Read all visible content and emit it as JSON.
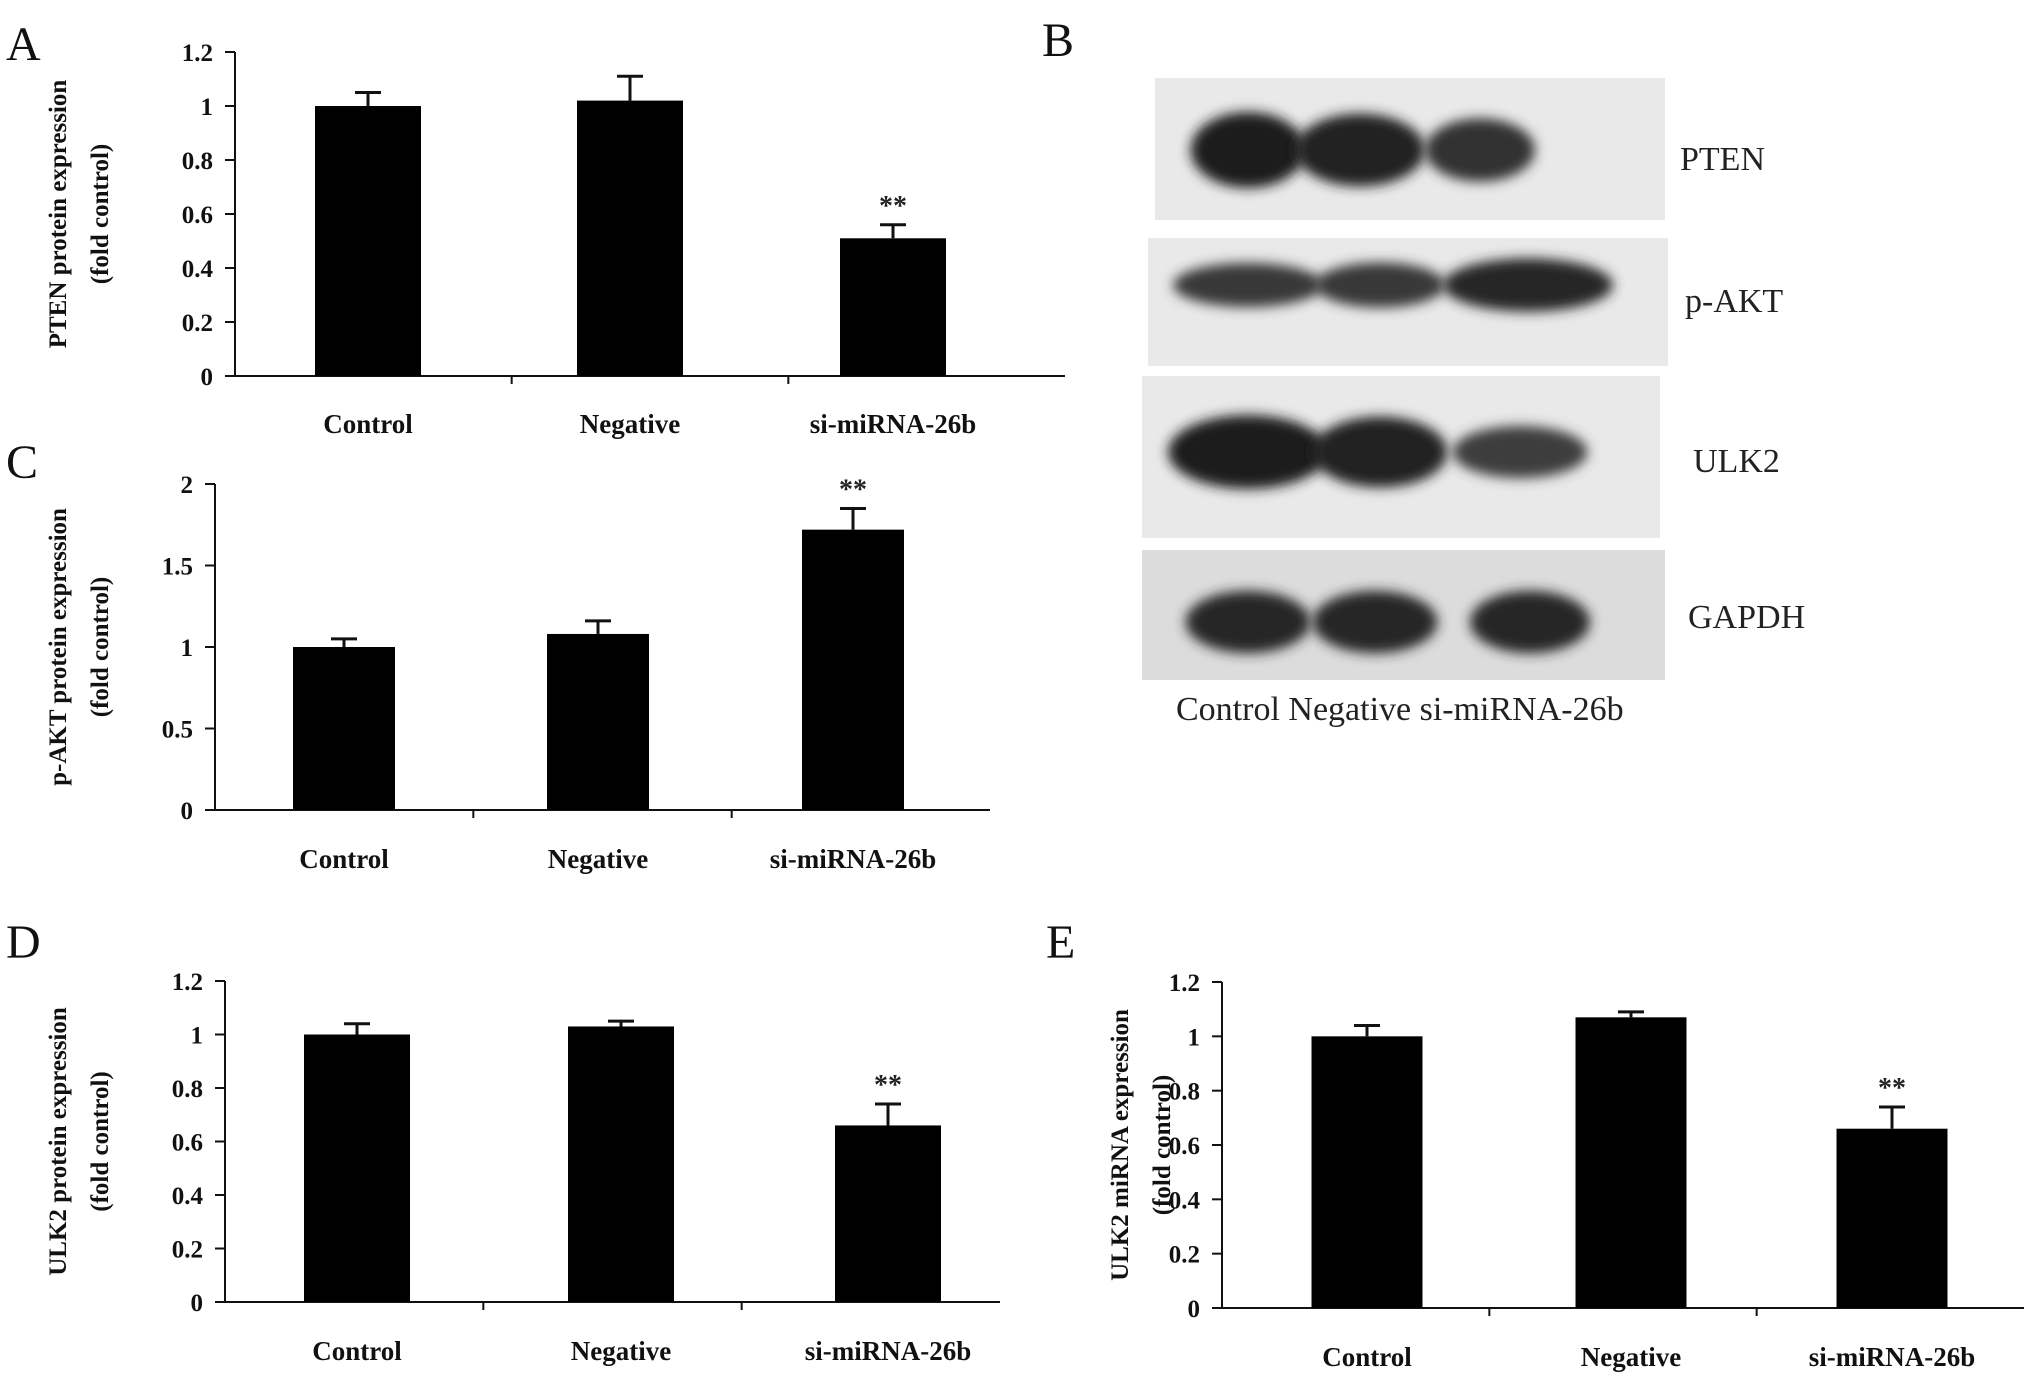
{
  "chart_data": [
    {
      "panel": "A",
      "type": "bar",
      "categories": [
        "Control",
        "Negative",
        "si-miRNA-26b"
      ],
      "values": [
        1.0,
        1.02,
        0.51
      ],
      "errors": [
        0.05,
        0.09,
        0.05
      ],
      "significance": [
        "",
        "",
        "**"
      ],
      "ylabel": [
        "PTEN protein expression",
        "(fold control)"
      ],
      "yticks": [
        "0",
        "0.2",
        "0.4",
        "0.6",
        "0.8",
        "1",
        "1.2"
      ],
      "ylim": [
        0,
        1.2
      ],
      "bar_color": "#000000"
    },
    {
      "panel": "C",
      "type": "bar",
      "categories": [
        "Control",
        "Negative",
        "si-miRNA-26b"
      ],
      "values": [
        1.0,
        1.08,
        1.72
      ],
      "errors": [
        0.05,
        0.08,
        0.13
      ],
      "significance": [
        "",
        "",
        "**"
      ],
      "ylabel": [
        "p-AKT protein expression",
        "(fold control)"
      ],
      "yticks": [
        "0",
        "0.5",
        "1",
        "1.5",
        "2"
      ],
      "ylim": [
        0,
        2
      ],
      "bar_color": "#000000"
    },
    {
      "panel": "D",
      "type": "bar",
      "categories": [
        "Control",
        "Negative",
        "si-miRNA-26b"
      ],
      "values": [
        1.0,
        1.03,
        0.66
      ],
      "errors": [
        0.04,
        0.02,
        0.08
      ],
      "significance": [
        "",
        "",
        "**"
      ],
      "ylabel": [
        "ULK2 protein expression",
        "(fold control)"
      ],
      "yticks": [
        "0",
        "0.2",
        "0.4",
        "0.6",
        "0.8",
        "1",
        "1.2"
      ],
      "ylim": [
        0,
        1.2
      ],
      "bar_color": "#000000"
    },
    {
      "panel": "E",
      "type": "bar",
      "categories": [
        "Control",
        "Negative",
        "si-miRNA-26b"
      ],
      "values": [
        1.0,
        1.07,
        0.66
      ],
      "errors": [
        0.04,
        0.02,
        0.08
      ],
      "significance": [
        "",
        "",
        "**"
      ],
      "ylabel": [
        "ULK2 miRNA expression",
        "(fold control)"
      ],
      "yticks": [
        "0",
        "0.2",
        "0.4",
        "0.6",
        "0.8",
        "1",
        "1.2"
      ],
      "ylim": [
        0,
        1.2
      ],
      "bar_color": "#000000"
    }
  ],
  "western_blot": {
    "panel": "B",
    "bands": [
      "PTEN",
      "p-AKT",
      "ULK2",
      "GAPDH"
    ],
    "lanes_label": "Control Negative si-miRNA-26b",
    "band_intensity": [
      [
        1.0,
        0.95,
        0.8
      ],
      [
        0.7,
        0.72,
        0.9
      ],
      [
        1.0,
        0.95,
        0.65
      ],
      [
        0.9,
        0.9,
        0.9
      ]
    ]
  }
}
